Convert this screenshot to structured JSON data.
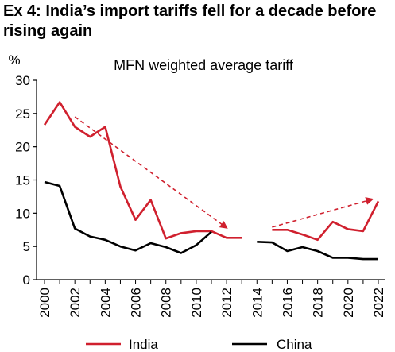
{
  "figure": {
    "title": "Ex 4: India’s import tariffs fell for a decade before rising again"
  },
  "chart_data": {
    "type": "line",
    "title": "MFN weighted average tariff",
    "ylabel": "%",
    "xlabel": "",
    "ylim": [
      0,
      30
    ],
    "xlim": [
      2000,
      2022
    ],
    "y_ticks": [
      0,
      5,
      10,
      15,
      20,
      25,
      30
    ],
    "x_ticks": [
      2000,
      2002,
      2004,
      2006,
      2008,
      2010,
      2012,
      2014,
      2016,
      2018,
      2020,
      2022
    ],
    "grid": false,
    "legend_position": "bottom",
    "series": [
      {
        "name": "India",
        "color": "#d0202e",
        "points": [
          [
            2000,
            23.3
          ],
          [
            2001,
            26.7
          ],
          [
            2002,
            23.0
          ],
          [
            2003,
            21.5
          ],
          [
            2004,
            23.0
          ],
          [
            2005,
            14.0
          ],
          [
            2006,
            9.0
          ],
          [
            2007,
            12.0
          ],
          [
            2008,
            6.2
          ],
          [
            2009,
            7.0
          ],
          [
            2010,
            7.3
          ],
          [
            2011,
            7.3
          ],
          [
            2012,
            6.3
          ],
          [
            2013,
            6.3
          ],
          null,
          [
            2015,
            7.5
          ],
          [
            2016,
            7.5
          ],
          [
            2017,
            6.8
          ],
          [
            2018,
            6.0
          ],
          [
            2019,
            8.7
          ],
          [
            2020,
            7.6
          ],
          [
            2021,
            7.3
          ],
          [
            2022,
            11.8
          ]
        ]
      },
      {
        "name": "China",
        "color": "#000000",
        "points": [
          [
            2000,
            14.7
          ],
          [
            2001,
            14.1
          ],
          [
            2002,
            7.7
          ],
          [
            2003,
            6.5
          ],
          [
            2004,
            6.0
          ],
          [
            2005,
            5.0
          ],
          [
            2006,
            4.4
          ],
          [
            2007,
            5.5
          ],
          [
            2008,
            4.9
          ],
          [
            2009,
            4.0
          ],
          [
            2010,
            5.2
          ],
          [
            2011,
            7.2
          ],
          null,
          [
            2014,
            5.7
          ],
          [
            2015,
            5.6
          ],
          [
            2016,
            4.3
          ],
          [
            2017,
            4.9
          ],
          [
            2018,
            4.3
          ],
          [
            2019,
            3.3
          ],
          [
            2020,
            3.3
          ],
          [
            2021,
            3.1
          ],
          [
            2022,
            3.1
          ]
        ]
      }
    ],
    "annotations": [
      {
        "type": "arrow",
        "style": "dashed",
        "color": "#d0202e",
        "from": [
          2002,
          24.5
        ],
        "to": [
          2012,
          7.8
        ]
      },
      {
        "type": "arrow",
        "style": "dashed",
        "color": "#d0202e",
        "from": [
          2015,
          7.9
        ],
        "to": [
          2021.6,
          12.1
        ]
      }
    ]
  }
}
